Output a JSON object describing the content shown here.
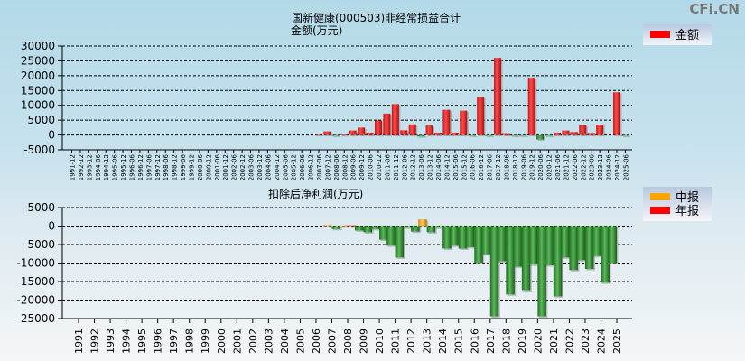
{
  "watermark": "CFi.CN",
  "colors": {
    "positive": "#e83030",
    "negative": "#2e8b2e",
    "interim": "#f5a623",
    "annual": "#ff0000"
  },
  "chart_data": [
    {
      "type": "bar",
      "title": "国新健康(000503)非经常损益合计",
      "ylabel": "金额(万元)",
      "legend": [
        "金额"
      ],
      "legend_position": "top-right",
      "ylim": [
        -5000,
        30000
      ],
      "yticks": [
        30000,
        25000,
        20000,
        15000,
        10000,
        5000,
        0,
        -5000
      ],
      "grid": true,
      "categories": [
        "1991-12",
        "1992-12",
        "1993-12",
        "1994-06",
        "1994-12",
        "1995-06",
        "1995-12",
        "1996-06",
        "1996-12",
        "1997-06",
        "1997-12",
        "1998-06",
        "1998-12",
        "1999-06",
        "1999-12",
        "2000-06",
        "2000-12",
        "2001-06",
        "2001-12",
        "2002-06",
        "2002-12",
        "2003-06",
        "2003-12",
        "2004-06",
        "2004-12",
        "2005-06",
        "2005-12",
        "2006-06",
        "2006-12",
        "2007-06",
        "2007-12",
        "2008-06",
        "2008-12",
        "2009-06",
        "2009-12",
        "2010-06",
        "2010-12",
        "2011-06",
        "2011-12",
        "2012-06",
        "2012-12",
        "2013-06",
        "2013-12",
        "2014-06",
        "2014-12",
        "2015-06",
        "2015-12",
        "2016-06",
        "2016-12",
        "2017-06",
        "2017-12",
        "2018-06",
        "2018-12",
        "2019-06",
        "2019-12",
        "2020-06",
        "2020-12",
        "2021-06",
        "2021-12",
        "2022-06",
        "2022-12",
        "2023-06",
        "2023-12",
        "2024-06",
        "2024-12",
        "2025-06"
      ],
      "values": [
        0,
        0,
        0,
        0,
        0,
        0,
        0,
        0,
        0,
        0,
        0,
        0,
        0,
        0,
        0,
        0,
        0,
        0,
        0,
        0,
        0,
        0,
        0,
        0,
        0,
        0,
        0,
        0,
        0,
        300,
        1200,
        -100,
        200,
        1500,
        2500,
        800,
        4900,
        7200,
        10400,
        1600,
        3600,
        -500,
        3200,
        800,
        8500,
        800,
        8200,
        -100,
        12800,
        -300,
        26000,
        600,
        -100,
        -100,
        19300,
        -1500,
        -100,
        800,
        1500,
        1000,
        3300,
        700,
        3500,
        0,
        14400,
        -100
      ]
    },
    {
      "type": "bar",
      "title": "扣除后净利润(万元)",
      "legend": [
        "中报",
        "年报"
      ],
      "legend_position": "top-right",
      "ylim": [
        -25000,
        5000
      ],
      "yticks": [
        5000,
        0,
        -5000,
        -10000,
        -15000,
        -20000,
        -25000
      ],
      "grid": true,
      "categories": [
        "1991",
        "1992",
        "1993",
        "1994",
        "1995",
        "1996",
        "1997",
        "1998",
        "1999",
        "2000",
        "2001",
        "2002",
        "2003",
        "2004",
        "2005",
        "2006",
        "2007",
        "2008",
        "2009",
        "2010",
        "2011",
        "2012",
        "2013",
        "2014",
        "2015",
        "2016",
        "2017",
        "2018",
        "2019",
        "2020",
        "2021",
        "2022",
        "2023",
        "2024",
        "2025"
      ],
      "series": [
        {
          "name": "中报",
          "values": [
            null,
            null,
            null,
            null,
            null,
            null,
            null,
            null,
            null,
            null,
            null,
            null,
            null,
            null,
            null,
            null,
            300,
            200,
            -1200,
            -800,
            -5300,
            -400,
            1800,
            -400,
            -5300,
            -5700,
            -7600,
            -9500,
            -11000,
            -10400,
            -10600,
            -8500,
            -9200,
            -8100,
            -10000
          ]
        },
        {
          "name": "年报",
          "values": [
            null,
            null,
            null,
            null,
            null,
            null,
            null,
            null,
            null,
            null,
            null,
            null,
            null,
            null,
            null,
            null,
            -800,
            200,
            -1700,
            -3700,
            -8500,
            -1500,
            -1700,
            -6100,
            -6100,
            -9900,
            -24400,
            -18500,
            -17300,
            -24400,
            -19000,
            -11900,
            -11600,
            -15300,
            null
          ]
        }
      ]
    }
  ]
}
